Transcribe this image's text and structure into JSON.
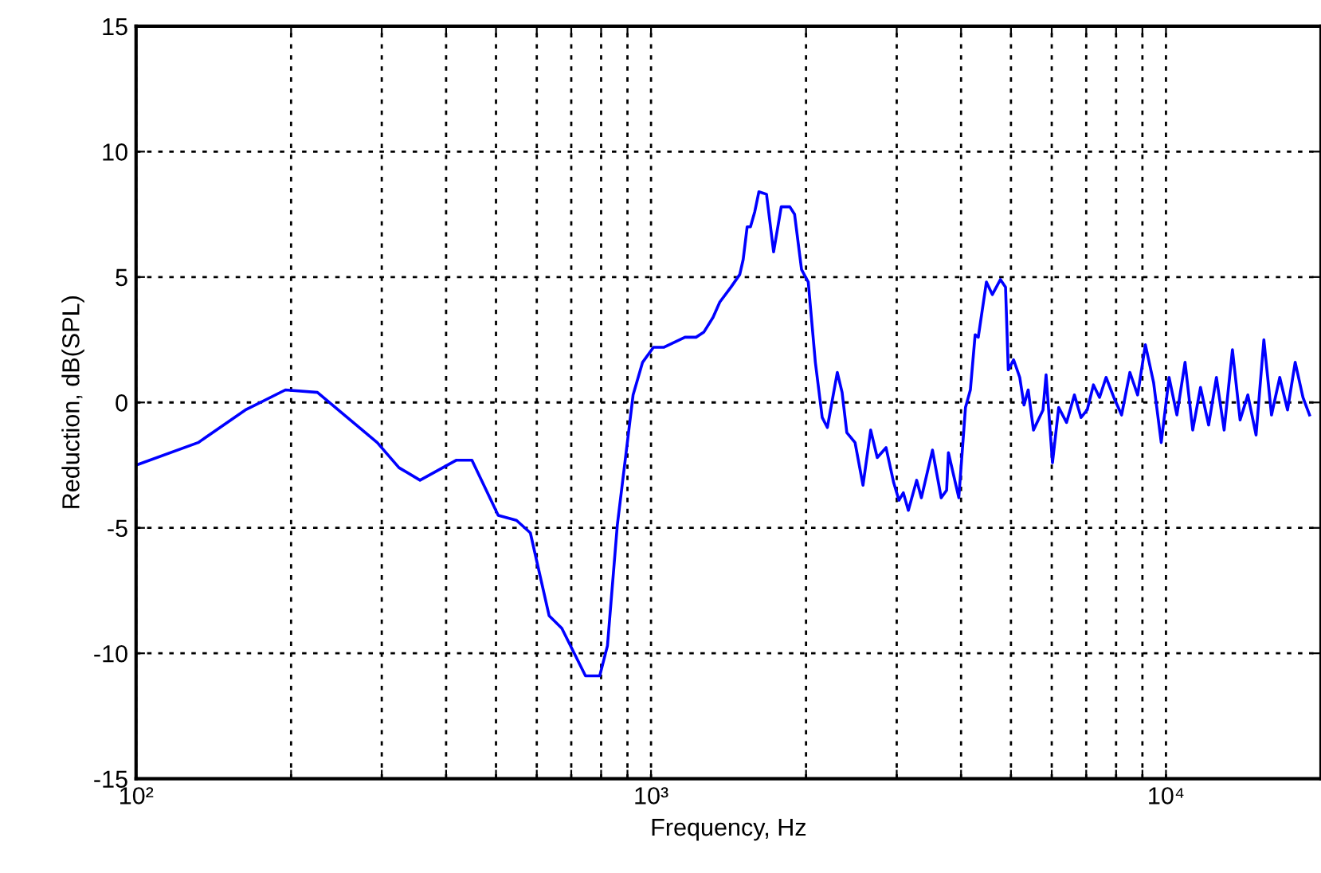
{
  "chart_data": {
    "type": "line",
    "xlabel": "Frequency, Hz",
    "ylabel": "Reduction, dB(SPL)",
    "log": "x",
    "xlim": [
      100,
      20000
    ],
    "ylim": [
      -15,
      15
    ],
    "xticks": [
      {
        "value": 100,
        "label": "10²"
      },
      {
        "value": 200,
        "label": null
      },
      {
        "value": 300,
        "label": null
      },
      {
        "value": 400,
        "label": null
      },
      {
        "value": 500,
        "label": null
      },
      {
        "value": 600,
        "label": null
      },
      {
        "value": 700,
        "label": null
      },
      {
        "value": 800,
        "label": null
      },
      {
        "value": 900,
        "label": null
      },
      {
        "value": 1000,
        "label": "10³"
      },
      {
        "value": 2000,
        "label": null
      },
      {
        "value": 3000,
        "label": null
      },
      {
        "value": 4000,
        "label": null
      },
      {
        "value": 5000,
        "label": null
      },
      {
        "value": 6000,
        "label": null
      },
      {
        "value": 7000,
        "label": null
      },
      {
        "value": 8000,
        "label": null
      },
      {
        "value": 9000,
        "label": null
      },
      {
        "value": 10000,
        "label": "10⁴"
      }
    ],
    "yticks": [
      -15,
      -10,
      -5,
      0,
      5,
      10,
      15
    ],
    "grid": true,
    "line_style": "solid",
    "marker": "none",
    "series": [
      {
        "color": "#0000ff",
        "x": [
          100,
          132,
          163,
          195,
          225,
          294,
          324,
          356,
          419,
          449,
          505,
          548,
          583,
          634,
          671,
          746,
          795,
          823,
          860,
          923,
          963,
          1011,
          1060,
          1164,
          1223,
          1266,
          1320,
          1360,
          1430,
          1487,
          1510,
          1537,
          1560,
          1590,
          1620,
          1676,
          1730,
          1790,
          1860,
          1900,
          1960,
          2020,
          2085,
          2150,
          2200,
          2300,
          2350,
          2400,
          2490,
          2580,
          2670,
          2750,
          2860,
          2960,
          3030,
          3090,
          3160,
          3280,
          3350,
          3520,
          3660,
          3750,
          3780,
          3960,
          4080,
          4170,
          4260,
          4320,
          4480,
          4600,
          4770,
          4880,
          4940,
          5060,
          5200,
          5300,
          5400,
          5530,
          5770,
          5850,
          6020,
          6190,
          6410,
          6640,
          6840,
          7030,
          7230,
          7430,
          7650,
          7920,
          8200,
          8510,
          8810,
          9120,
          9460,
          9790,
          10140,
          10500,
          10890,
          11270,
          11670,
          12100,
          12530,
          12970,
          13460,
          13930,
          14420,
          14960,
          15490,
          16030,
          16630,
          17220,
          17820,
          18450,
          19000
        ],
        "values": [
          -2.5,
          -1.6,
          -0.3,
          0.5,
          0.4,
          -1.6,
          -2.6,
          -3.1,
          -2.3,
          -2.3,
          -4.5,
          -4.7,
          -5.2,
          -8.5,
          -9.0,
          -10.9,
          -10.9,
          -9.7,
          -4.9,
          0.3,
          1.6,
          2.2,
          2.2,
          2.6,
          2.6,
          2.8,
          3.4,
          4.0,
          4.6,
          5.1,
          5.7,
          7.0,
          7.0,
          7.6,
          8.4,
          8.3,
          6.0,
          7.8,
          7.8,
          7.5,
          5.3,
          4.8,
          1.6,
          -0.6,
          -1.0,
          1.2,
          0.4,
          -1.2,
          -1.6,
          -3.3,
          -1.1,
          -2.2,
          -1.8,
          -3.2,
          -3.9,
          -3.6,
          -4.3,
          -3.1,
          -3.8,
          -1.9,
          -3.8,
          -3.5,
          -2.0,
          -3.8,
          -0.2,
          0.5,
          2.7,
          2.6,
          4.8,
          4.3,
          4.9,
          4.6,
          1.3,
          1.7,
          1.0,
          -0.1,
          0.5,
          -1.1,
          -0.3,
          1.1,
          -2.4,
          -0.2,
          -0.8,
          0.3,
          -0.6,
          -0.3,
          0.7,
          0.2,
          1.0,
          0.2,
          -0.5,
          1.2,
          0.3,
          2.3,
          0.8,
          -1.6,
          1.0,
          -0.5,
          1.6,
          -1.1,
          0.6,
          -0.9,
          1.0,
          -1.1,
          2.1,
          -0.7,
          0.3,
          -1.3,
          2.5,
          -0.5,
          1.0,
          -0.3,
          1.6,
          0.2,
          -0.5
        ]
      }
    ]
  }
}
